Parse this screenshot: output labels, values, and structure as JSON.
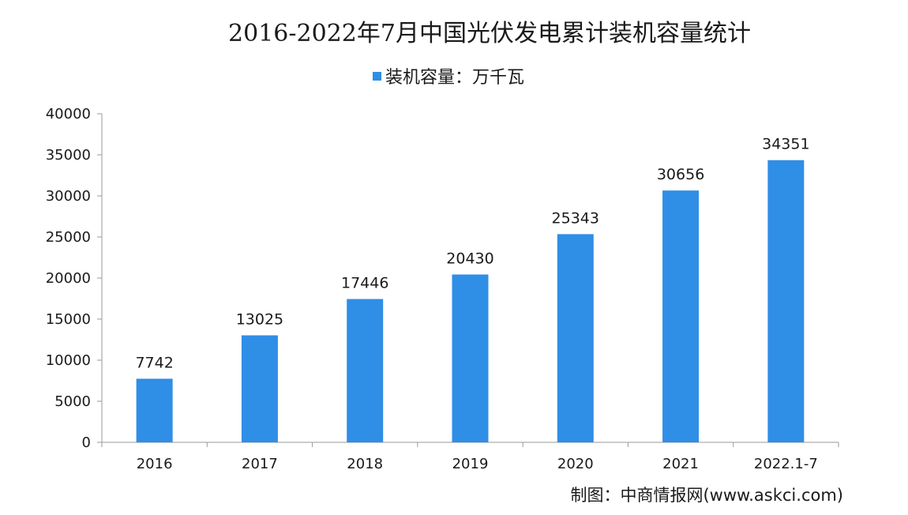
{
  "chart_data": {
    "type": "bar",
    "title": "2016-2022年7月中国光伏发电累计装机容量统计",
    "legend": "装机容量：万千瓦",
    "legend_position": "top",
    "categories": [
      "2016",
      "2017",
      "2018",
      "2019",
      "2020",
      "2021",
      "2022.1-7"
    ],
    "values": [
      7742,
      13025,
      17446,
      20430,
      25343,
      30656,
      34351
    ],
    "data_labels": [
      "7742",
      "13025",
      "17446",
      "20430",
      "25343",
      "30656",
      "34351"
    ],
    "ylim": [
      0,
      40000
    ],
    "yticks": [
      "0",
      "5000",
      "10000",
      "15000",
      "20000",
      "25000",
      "30000",
      "35000",
      "40000"
    ],
    "bar_color": "#2f8ee6",
    "grid": false
  },
  "source": "制图：中商情报网(www.askci.com)"
}
